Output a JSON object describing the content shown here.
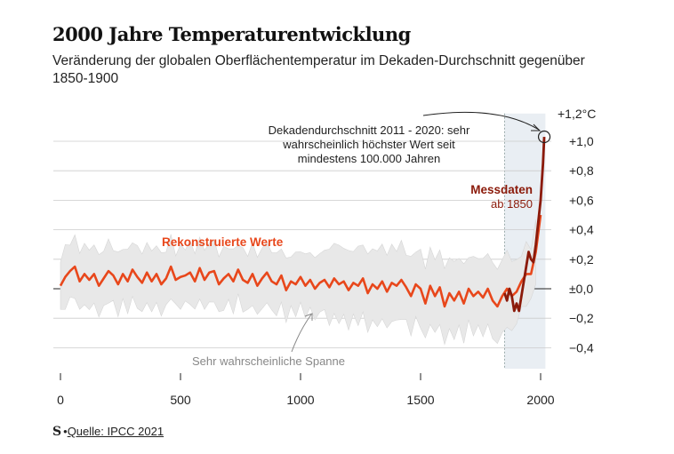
{
  "header": {
    "title": "2000 Jahre Temperaturentwicklung",
    "subtitle": "Veränderung der globalen Oberflächentemperatur im Dekaden-Durchschnitt gegenüber 1850-1900"
  },
  "footer": {
    "logo": "S",
    "source": "Quelle: IPCC 2021"
  },
  "chart_data": {
    "type": "line",
    "xlim": [
      -20,
      2040
    ],
    "ylim": [
      -0.5,
      1.25
    ],
    "x_ticks": [
      0,
      500,
      1000,
      1500,
      2000
    ],
    "y_ticks": [
      {
        "v": 1.2,
        "label": "+1,2°C"
      },
      {
        "v": 1.0,
        "label": "+1,0"
      },
      {
        "v": 0.8,
        "label": "+0,8"
      },
      {
        "v": 0.6,
        "label": "+0,6"
      },
      {
        "v": 0.4,
        "label": "+0,4"
      },
      {
        "v": 0.2,
        "label": "+0,2"
      },
      {
        "v": 0.0,
        "label": "±0,0"
      },
      {
        "v": -0.2,
        "label": "−0,2"
      },
      {
        "v": -0.4,
        "label": "−0,4"
      }
    ],
    "shaded_period": [
      1850,
      2020
    ],
    "colors": {
      "reconstructed": "#e8471b",
      "measured": "#8b1a0a",
      "range": "#e8e8e8",
      "shade": "#e9eef3"
    },
    "series": [
      {
        "name": "Rekonstruierte Werte",
        "x": [
          0,
          20,
          40,
          60,
          80,
          100,
          120,
          140,
          160,
          180,
          200,
          220,
          240,
          260,
          280,
          300,
          320,
          340,
          360,
          380,
          400,
          420,
          440,
          460,
          480,
          500,
          520,
          540,
          560,
          580,
          600,
          620,
          640,
          660,
          680,
          700,
          720,
          740,
          760,
          780,
          800,
          820,
          840,
          860,
          880,
          900,
          920,
          940,
          960,
          980,
          1000,
          1020,
          1040,
          1060,
          1080,
          1100,
          1120,
          1140,
          1160,
          1180,
          1200,
          1220,
          1240,
          1260,
          1280,
          1300,
          1320,
          1340,
          1360,
          1380,
          1400,
          1420,
          1440,
          1460,
          1480,
          1500,
          1520,
          1540,
          1560,
          1580,
          1600,
          1620,
          1640,
          1660,
          1680,
          1700,
          1720,
          1740,
          1760,
          1780,
          1800,
          1820,
          1840,
          1860,
          1880,
          1900,
          1920,
          1940,
          1960,
          1980,
          2000
        ],
        "y": [
          0.02,
          0.08,
          0.12,
          0.15,
          0.05,
          0.1,
          0.06,
          0.1,
          0.02,
          0.07,
          0.12,
          0.09,
          0.03,
          0.1,
          0.05,
          0.13,
          0.08,
          0.04,
          0.11,
          0.05,
          0.1,
          0.03,
          0.07,
          0.15,
          0.06,
          0.08,
          0.09,
          0.11,
          0.05,
          0.14,
          0.06,
          0.11,
          0.12,
          0.03,
          0.07,
          0.1,
          0.05,
          0.13,
          0.06,
          0.04,
          0.1,
          0.02,
          0.07,
          0.11,
          0.05,
          0.03,
          0.09,
          -0.01,
          0.05,
          0.03,
          0.08,
          0.02,
          0.06,
          0.0,
          0.04,
          0.06,
          0.01,
          0.07,
          0.03,
          0.05,
          -0.01,
          0.04,
          0.02,
          0.07,
          -0.03,
          0.03,
          0.0,
          0.05,
          -0.02,
          0.04,
          0.02,
          0.06,
          0.01,
          -0.05,
          0.03,
          0.0,
          -0.1,
          0.02,
          -0.05,
          0.01,
          -0.12,
          -0.03,
          -0.08,
          -0.02,
          -0.1,
          0.0,
          -0.05,
          -0.02,
          -0.06,
          0.0,
          -0.08,
          -0.12,
          -0.05,
          0.0,
          -0.05,
          -0.02,
          0.05,
          0.1,
          0.1,
          0.25,
          0.5
        ]
      },
      {
        "name": "Messdaten",
        "x": [
          1850,
          1860,
          1870,
          1880,
          1890,
          1900,
          1910,
          1920,
          1930,
          1940,
          1950,
          1960,
          1970,
          1980,
          1990,
          2000,
          2010,
          2015
        ],
        "y": [
          -0.03,
          -0.08,
          0.0,
          -0.05,
          -0.15,
          -0.1,
          -0.15,
          -0.05,
          0.05,
          0.15,
          0.25,
          0.2,
          0.18,
          0.3,
          0.45,
          0.6,
          0.85,
          1.03
        ]
      }
    ],
    "labels": {
      "reconstructed": "Rekonstruierte Werte",
      "measured": "Messdaten",
      "measured_sub": "ab 1850",
      "range": "Sehr wahrscheinliche Spanne",
      "annotation": [
        "Dekadendurchschnitt 2011 - 2020: sehr",
        "wahrscheinlich höchster Wert seit",
        "mindestens 100.000 Jahren"
      ]
    }
  }
}
